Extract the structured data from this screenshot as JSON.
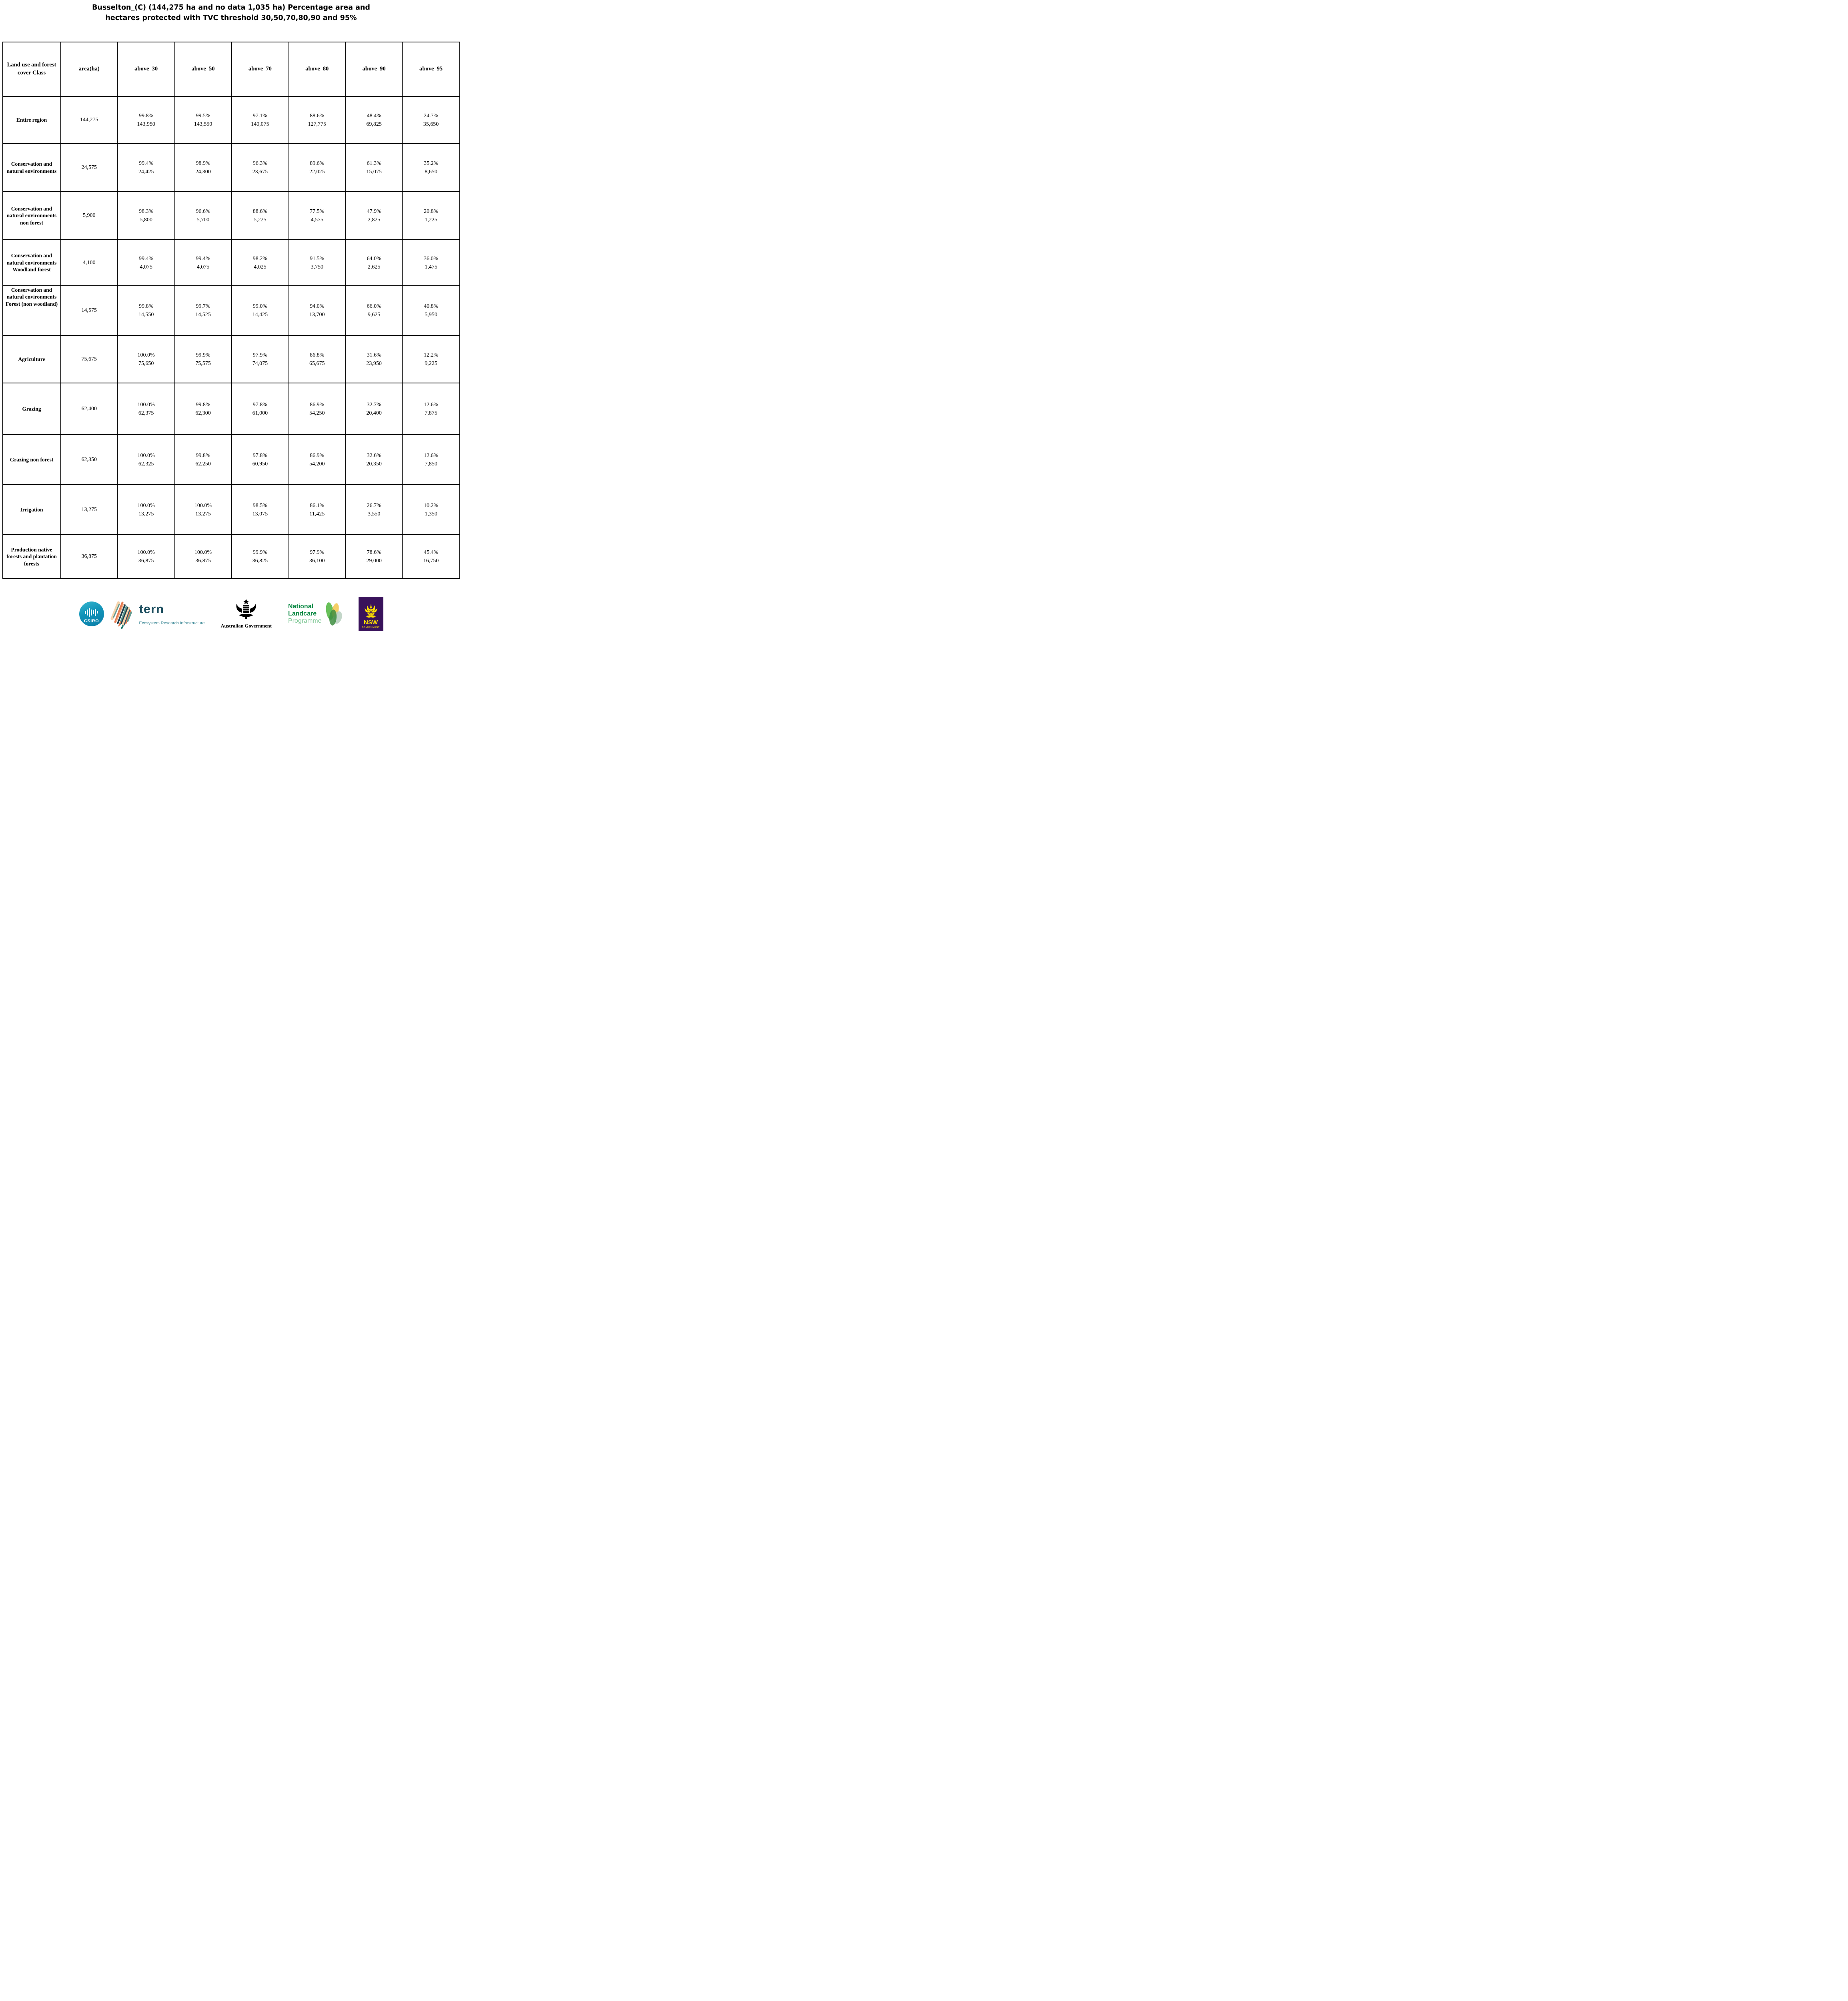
{
  "title": {
    "line1": "Busselton_(C) (144,275 ha and no data 1,035 ha) Percentage area and",
    "line2": "hectares protected with TVC threshold 30,50,70,80,90 and 95%"
  },
  "table": {
    "columns": [
      "Land use and forest cover Class",
      "area(ha)",
      "above_30",
      "above_50",
      "above_70",
      "above_80",
      "above_90",
      "above_95"
    ],
    "rows": [
      {
        "label": "Entire region",
        "area": "144,275",
        "cells": [
          [
            "99.8%",
            "143,950"
          ],
          [
            "99.5%",
            "143,550"
          ],
          [
            "97.1%",
            "140,075"
          ],
          [
            "88.6%",
            "127,775"
          ],
          [
            "48.4%",
            "69,825"
          ],
          [
            "24.7%",
            "35,650"
          ]
        ]
      },
      {
        "label": "Conservation and natural environments",
        "area": "24,575",
        "cells": [
          [
            "99.4%",
            "24,425"
          ],
          [
            "98.9%",
            "24,300"
          ],
          [
            "96.3%",
            "23,675"
          ],
          [
            "89.6%",
            "22,025"
          ],
          [
            "61.3%",
            "15,075"
          ],
          [
            "35.2%",
            "8,650"
          ]
        ]
      },
      {
        "label": "Conservation and natural environments non forest",
        "area": "5,900",
        "cells": [
          [
            "98.3%",
            "5,800"
          ],
          [
            "96.6%",
            "5,700"
          ],
          [
            "88.6%",
            "5,225"
          ],
          [
            "77.5%",
            "4,575"
          ],
          [
            "47.9%",
            "2,825"
          ],
          [
            "20.8%",
            "1,225"
          ]
        ]
      },
      {
        "label": "Conservation and natural environments Woodland forest",
        "area": "4,100",
        "cells": [
          [
            "99.4%",
            "4,075"
          ],
          [
            "99.4%",
            "4,075"
          ],
          [
            "98.2%",
            "4,025"
          ],
          [
            "91.5%",
            "3,750"
          ],
          [
            "64.0%",
            "2,625"
          ],
          [
            "36.0%",
            "1,475"
          ]
        ]
      },
      {
        "label": "Conservation and natural environments Forest (non woodland)",
        "area": "14,575",
        "cells": [
          [
            "99.8%",
            "14,550"
          ],
          [
            "99.7%",
            "14,525"
          ],
          [
            "99.0%",
            "14,425"
          ],
          [
            "94.0%",
            "13,700"
          ],
          [
            "66.0%",
            "9,625"
          ],
          [
            "40.8%",
            "5,950"
          ]
        ]
      },
      {
        "label": "Agriculture",
        "area": "75,675",
        "cells": [
          [
            "100.0%",
            "75,650"
          ],
          [
            "99.9%",
            "75,575"
          ],
          [
            "97.9%",
            "74,075"
          ],
          [
            "86.8%",
            "65,675"
          ],
          [
            "31.6%",
            "23,950"
          ],
          [
            "12.2%",
            "9,225"
          ]
        ]
      },
      {
        "label": "Grazing",
        "area": "62,400",
        "cells": [
          [
            "100.0%",
            "62,375"
          ],
          [
            "99.8%",
            "62,300"
          ],
          [
            "97.8%",
            "61,000"
          ],
          [
            "86.9%",
            "54,250"
          ],
          [
            "32.7%",
            "20,400"
          ],
          [
            "12.6%",
            "7,875"
          ]
        ]
      },
      {
        "label": "Grazing non forest",
        "area": "62,350",
        "cells": [
          [
            "100.0%",
            "62,325"
          ],
          [
            "99.8%",
            "62,250"
          ],
          [
            "97.8%",
            "60,950"
          ],
          [
            "86.9%",
            "54,200"
          ],
          [
            "32.6%",
            "20,350"
          ],
          [
            "12.6%",
            "7,850"
          ]
        ]
      },
      {
        "label": "Irrigation",
        "area": "13,275",
        "cells": [
          [
            "100.0%",
            "13,275"
          ],
          [
            "100.0%",
            "13,275"
          ],
          [
            "98.5%",
            "13,075"
          ],
          [
            "86.1%",
            "11,425"
          ],
          [
            "26.7%",
            "3,550"
          ],
          [
            "10.2%",
            "1,350"
          ]
        ]
      },
      {
        "label": "Production native forests and plantation forests",
        "area": "36,875",
        "cells": [
          [
            "100.0%",
            "36,875"
          ],
          [
            "100.0%",
            "36,875"
          ],
          [
            "99.9%",
            "36,825"
          ],
          [
            "97.9%",
            "36,100"
          ],
          [
            "78.6%",
            "29,000"
          ],
          [
            "45.4%",
            "16,750"
          ]
        ]
      }
    ]
  },
  "footer": {
    "csiro_label": "CSIRO",
    "tern_label": "tern",
    "tern_subtitle": "Ecosystem Research Infrastructure",
    "aus_gov_label": "Australian Government",
    "nlp_line1": "National",
    "nlp_line2": "Landcare",
    "nlp_line3": "Programme",
    "nsw_label": "NSW",
    "nsw_sublabel": "GOVERNMENT",
    "colors": {
      "csiro_teal": "#0e87ad",
      "tern_dark": "#1d4e5f",
      "tern_teal": "#2a7d8c",
      "landcare_green": "#0d8a45",
      "landcare_light_green": "#7cc693",
      "nsw_purple": "#39125b",
      "nsw_yellow": "#ffe000",
      "art_orange": "#e57a50",
      "art_peach": "#f6d4ae",
      "art_teal": "#639c92",
      "art_navy": "#1d3d4a"
    }
  }
}
